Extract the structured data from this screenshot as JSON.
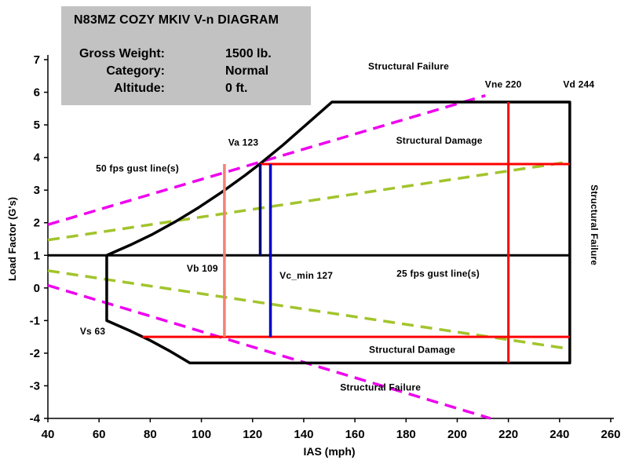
{
  "info_box": {
    "title": "N83MZ COZY MKIV V-n DIAGRAM",
    "rows": [
      {
        "label": "Gross Weight:",
        "value": "1500 lb."
      },
      {
        "label": "Category:",
        "value": "Normal"
      },
      {
        "label": "Altitude:",
        "value": "0 ft."
      }
    ]
  },
  "chart_data": {
    "type": "line",
    "title": "N83MZ COZY MKIV V-n DIAGRAM",
    "xlabel": "IAS (mph)",
    "ylabel": "Load Factor (G's)",
    "x_axis": {
      "min": 40,
      "max": 260,
      "ticks": [
        40,
        60,
        80,
        100,
        120,
        140,
        160,
        180,
        200,
        220,
        240,
        260
      ]
    },
    "y_axis": {
      "min": -4,
      "max": 7,
      "ticks": [
        -4,
        -3,
        -2,
        -1,
        0,
        1,
        2,
        3,
        4,
        5,
        6,
        7
      ]
    },
    "grid": false,
    "legend": "none",
    "key_speeds": {
      "Vs": 63,
      "Vb": 109,
      "Va": 123,
      "Vc_min": 127,
      "Vne": 220,
      "Vd": 244
    },
    "limit_loads": {
      "positive_damage": 3.8,
      "negative_damage": -1.5,
      "positive_failure": 5.7,
      "negative_failure": -2.3,
      "level_flight": 1
    },
    "series": [
      {
        "name": "gust-line-25fps-positive",
        "color": "#a2c42c",
        "width": 3.5,
        "dash": "15 9",
        "points": [
          [
            40,
            1.47
          ],
          [
            244,
            3.87
          ]
        ]
      },
      {
        "name": "gust-line-25fps-negative",
        "color": "#a2c42c",
        "width": 3.5,
        "dash": "15 9",
        "points": [
          [
            40,
            0.53
          ],
          [
            244,
            -1.87
          ]
        ]
      },
      {
        "name": "gust-line-50fps-positive",
        "color": "#ee00ee",
        "width": 3.5,
        "dash": "15 9",
        "points": [
          [
            40,
            1.94
          ],
          [
            211,
            5.9
          ]
        ]
      },
      {
        "name": "gust-line-50fps-negative",
        "color": "#ee00ee",
        "width": 3.5,
        "dash": "15 9",
        "points": [
          [
            40,
            0.08
          ],
          [
            213,
            -4
          ]
        ]
      },
      {
        "name": "flight-envelope",
        "color": "#000000",
        "width": 3.5,
        "points": [
          [
            63,
            1
          ],
          [
            72,
            1.31
          ],
          [
            81,
            1.65
          ],
          [
            90,
            2.04
          ],
          [
            99,
            2.47
          ],
          [
            108,
            2.94
          ],
          [
            117,
            3.45
          ],
          [
            123,
            3.81
          ],
          [
            132,
            4.39
          ],
          [
            141,
            5.01
          ],
          [
            151,
            5.7
          ],
          [
            244,
            5.7
          ],
          [
            244,
            -2.3
          ],
          [
            95.5,
            -2.3
          ],
          [
            88,
            -1.95
          ],
          [
            80,
            -1.61
          ],
          [
            72,
            -1.31
          ],
          [
            63,
            -1
          ],
          [
            63,
            1
          ]
        ]
      },
      {
        "name": "level-flight-line",
        "color": "#000000",
        "width": 3,
        "points": [
          [
            40,
            1
          ],
          [
            244,
            1
          ]
        ]
      },
      {
        "name": "structural-damage-limit-positive",
        "color": "#ff0000",
        "width": 3,
        "points": [
          [
            123,
            3.8
          ],
          [
            244,
            3.8
          ]
        ]
      },
      {
        "name": "structural-damage-limit-negative",
        "color": "#ff0000",
        "width": 3,
        "points": [
          [
            77,
            -1.5
          ],
          [
            244,
            -1.5
          ]
        ]
      },
      {
        "name": "vne-line",
        "color": "#ff0000",
        "width": 3,
        "points": [
          [
            220,
            5.7
          ],
          [
            220,
            -2.3
          ]
        ]
      },
      {
        "name": "vb-line",
        "color": "#f48172",
        "width": 3.5,
        "points": [
          [
            109,
            3.8
          ],
          [
            109,
            -1.5
          ]
        ]
      },
      {
        "name": "va-line",
        "color": "#000080",
        "width": 3.5,
        "points": [
          [
            123,
            3.8
          ],
          [
            123,
            1
          ]
        ]
      },
      {
        "name": "vc-min-line",
        "color": "#0000cc",
        "width": 3.5,
        "points": [
          [
            127,
            3.8
          ],
          [
            127,
            -1.5
          ]
        ]
      }
    ],
    "annotations": [
      {
        "name": "label-structural-failure-top",
        "text": "Structural Failure",
        "v": 181,
        "n": 6.7
      },
      {
        "name": "label-vne",
        "text": "Vne 220",
        "v": 218,
        "n": 6.15
      },
      {
        "name": "label-vd",
        "text": "Vd 244",
        "v": 247.5,
        "n": 6.15
      },
      {
        "name": "label-structural-damage-top",
        "text": "Structural Damage",
        "v": 193,
        "n": 4.42
      },
      {
        "name": "label-va",
        "text": "Va 123",
        "v": 116.4,
        "n": 4.37
      },
      {
        "name": "label-50fps-gust",
        "text": "50 fps gust line(s)",
        "v": 75,
        "n": 3.57
      },
      {
        "name": "label-vb",
        "text": "Vb 109",
        "v": 100.4,
        "n": 0.5
      },
      {
        "name": "label-vc-min",
        "text": "Vc_min 127",
        "v": 141,
        "n": 0.28
      },
      {
        "name": "label-25fps-gust",
        "text": "25 fps gust line(s)",
        "v": 192.5,
        "n": 0.35
      },
      {
        "name": "label-vs",
        "text": "Vs 63",
        "v": 57.5,
        "n": -1.43
      },
      {
        "name": "label-structural-damage-bottom",
        "text": "Structural Damage",
        "v": 182.4,
        "n": -1.99
      },
      {
        "name": "label-structural-failure-bottom",
        "text": "Structural Failure",
        "v": 170,
        "n": -3.14
      },
      {
        "name": "label-structural-failure-right",
        "text": "Structural Failure",
        "v": 252.3,
        "n": 1.93,
        "rotate": 90
      }
    ]
  }
}
